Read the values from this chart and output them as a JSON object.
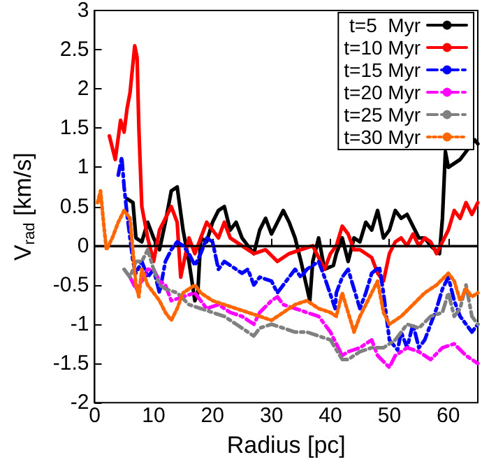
{
  "chart_data": {
    "type": "line",
    "xlabel": "Radius [pc]",
    "ylabel": "V$_{rad}$ [km/s]",
    "xlim": [
      0,
      65
    ],
    "xticks": [
      0,
      10,
      20,
      30,
      40,
      50,
      60
    ],
    "ylim": [
      -2,
      3
    ],
    "yticks": [
      -2,
      -1.5,
      -1,
      -0.5,
      0,
      0.5,
      1,
      1.5,
      2,
      2.5,
      3
    ],
    "grid": false,
    "legend": "top right",
    "marker": "none",
    "ref_lines": [
      {
        "axis": "y",
        "value": 0,
        "color": "#000000"
      }
    ],
    "series": [
      {
        "name": "t=5  Myr",
        "color": "#000000",
        "line_style": "solid",
        "x": [
          5.5,
          6.5,
          7,
          8,
          9,
          10,
          11,
          12,
          13,
          14,
          15,
          16,
          17,
          17.5,
          18,
          19,
          20,
          21,
          22,
          23,
          24,
          25,
          26,
          27,
          28,
          29,
          30,
          31,
          32,
          33,
          34,
          35,
          36.5,
          37,
          38,
          39,
          40.5,
          41,
          42,
          43,
          44,
          45,
          46,
          47,
          48,
          49,
          50,
          51,
          52,
          53,
          54,
          55,
          56,
          57,
          58.5,
          59,
          59.5,
          60,
          62,
          64.5,
          65
        ],
        "values": [
          0.6,
          0.55,
          0.1,
          0.05,
          0.3,
          0.1,
          -0.05,
          0.3,
          0.7,
          0.75,
          0.2,
          -0.2,
          -0.7,
          -0.6,
          0.1,
          0.05,
          0.3,
          0.45,
          0.5,
          0.2,
          0.3,
          0.1,
          0,
          -0.1,
          0.2,
          0.35,
          0.15,
          0.3,
          0.45,
          0.3,
          0.1,
          -0.2,
          -0.7,
          -0.2,
          0.1,
          -0.3,
          -0.25,
          -0.1,
          0.1,
          -0.2,
          0.1,
          0.05,
          0.3,
          0.2,
          0.45,
          0.1,
          0.2,
          0.45,
          0.35,
          0.4,
          0.25,
          0.1,
          0.1,
          0,
          -0.1,
          0.35,
          1.2,
          1,
          1.1,
          1.35,
          1.3
        ]
      },
      {
        "name": "t=10 Myr",
        "color": "#ff0000",
        "line_style": "solid",
        "x": [
          2.5,
          3.5,
          4.4,
          5,
          5.5,
          6,
          6.8,
          7.2,
          7.5,
          8,
          9,
          10,
          11,
          12,
          13,
          14,
          14.6,
          16,
          17,
          18,
          19,
          20,
          21,
          22,
          23,
          25,
          27,
          29,
          31,
          33,
          35,
          37,
          39,
          40,
          41,
          42,
          43,
          44,
          45,
          46,
          47,
          48,
          49,
          50,
          51,
          52,
          53,
          54,
          55,
          56,
          57,
          58,
          59,
          60,
          61,
          62,
          63,
          64,
          65
        ],
        "values": [
          1.4,
          1.1,
          1.6,
          1.45,
          1.75,
          1.95,
          2.55,
          2.4,
          1.5,
          0.5,
          0.1,
          -0.2,
          0.2,
          0.35,
          0.5,
          0.3,
          -0.4,
          0.1,
          -0.1,
          0.1,
          0.3,
          0.2,
          0.1,
          0.3,
          0.1,
          0,
          -0.1,
          -0.05,
          -0.2,
          -0.1,
          -0.05,
          0,
          -0.3,
          -0.1,
          0,
          0.25,
          0.15,
          -0.05,
          -0.05,
          -0.1,
          -0.15,
          -0.35,
          -0.45,
          -0.1,
          0.05,
          0.1,
          0,
          0.15,
          0,
          0.1,
          0.05,
          -0.1,
          0.05,
          0.2,
          0.45,
          0.35,
          0.55,
          0.4,
          0.55
        ]
      },
      {
        "name": "t=15 Myr",
        "color": "#0000ff",
        "line_style": "dashed",
        "x": [
          4,
          4.6,
          5,
          5.5,
          6,
          6.5,
          7,
          8,
          9,
          10,
          11,
          12,
          13,
          14,
          15,
          16,
          17,
          18,
          19,
          20,
          21,
          22,
          23,
          25,
          26,
          27,
          28,
          30,
          31,
          32,
          33,
          34,
          35,
          36,
          37,
          38,
          39,
          40.8,
          41,
          42,
          43,
          44,
          45,
          46,
          47,
          48.3,
          49,
          50,
          51.4,
          52,
          53,
          54,
          55,
          56,
          57,
          58,
          59,
          60,
          61,
          62,
          63,
          64,
          65
        ],
        "values": [
          0.9,
          1.13,
          0.75,
          0.4,
          0.1,
          -0.2,
          -0.35,
          -0.2,
          -0.4,
          -0.3,
          -0.6,
          -0.2,
          -0.05,
          0.05,
          0,
          -0.1,
          -0.25,
          -0.1,
          0.1,
          0.05,
          -0.3,
          -0.2,
          -0.25,
          -0.35,
          -0.3,
          -0.5,
          -0.4,
          -0.45,
          -0.6,
          -0.5,
          -0.4,
          -0.3,
          -0.4,
          -0.3,
          -0.25,
          -0.2,
          -0.4,
          -0.8,
          -0.6,
          -0.4,
          -0.3,
          -0.55,
          -0.8,
          -0.6,
          -0.35,
          -0.27,
          -0.6,
          -1.2,
          -1.33,
          -1.1,
          -1.3,
          -1,
          -1.3,
          -1.2,
          -1,
          -0.8,
          -0.55,
          -0.4,
          -0.7,
          -0.9,
          -1,
          -1.1,
          -1
        ]
      },
      {
        "name": "t=20 Myr",
        "color": "#ff00ff",
        "line_style": "dashed",
        "x": [
          6,
          7,
          8,
          9,
          10,
          11,
          12,
          13,
          15,
          17,
          19,
          21,
          23,
          25,
          26,
          27,
          28,
          30,
          31,
          32,
          34,
          36,
          38,
          40,
          42,
          43,
          45,
          47,
          48,
          50,
          51,
          53,
          55,
          57,
          59,
          61,
          63,
          65
        ],
        "values": [
          -0.4,
          -0.55,
          -0.45,
          -0.3,
          -0.3,
          -0.45,
          -0.5,
          -0.7,
          -0.65,
          -0.6,
          -0.8,
          -0.75,
          -0.85,
          -0.9,
          -0.95,
          -1,
          -0.85,
          -0.7,
          -0.65,
          -0.75,
          -0.8,
          -0.85,
          -0.9,
          -1.1,
          -1.4,
          -1.35,
          -1.3,
          -1.2,
          -1.4,
          -1.55,
          -1.4,
          -1.3,
          -1.35,
          -1.45,
          -1.3,
          -1.25,
          -1.4,
          -1.5
        ]
      },
      {
        "name": "t=25 Myr",
        "color": "#808080",
        "line_style": "dashed",
        "x": [
          5,
          6,
          7,
          8,
          9,
          10,
          11,
          12,
          14,
          16,
          18,
          20,
          22,
          24,
          26,
          27,
          28,
          30,
          32,
          34,
          36,
          38,
          40,
          42,
          43,
          45,
          47,
          49,
          51,
          53,
          55,
          57,
          59,
          60,
          61,
          62,
          63,
          64,
          65
        ],
        "values": [
          -0.3,
          -0.4,
          -0.2,
          -0.2,
          -0.05,
          -0.3,
          -0.5,
          -0.55,
          -0.6,
          -0.75,
          -0.8,
          -0.85,
          -0.9,
          -1,
          -1.1,
          -1.15,
          -1.05,
          -1,
          -1.05,
          -1.1,
          -1.1,
          -1.15,
          -1.2,
          -1.45,
          -1.45,
          -1.35,
          -1.3,
          -1.3,
          -1.2,
          -1,
          -1.05,
          -0.9,
          -0.85,
          -0.6,
          -0.9,
          -0.8,
          -0.5,
          -0.9,
          -1
        ]
      },
      {
        "name": "t=30 Myr",
        "color": "#ff6600",
        "line_style": "dotted",
        "x": [
          0.5,
          1,
          1.5,
          2,
          3,
          4,
          5,
          6,
          7,
          7.5,
          8,
          9,
          10,
          11,
          12,
          13,
          14,
          15,
          16,
          17,
          18,
          19,
          20,
          22,
          24,
          26,
          28,
          30,
          32,
          34,
          36,
          38,
          40,
          41,
          42,
          43,
          44,
          45,
          46,
          47,
          48,
          49,
          50,
          52,
          54,
          56,
          58,
          60,
          61,
          62,
          63,
          64,
          65
        ],
        "values": [
          0.55,
          0.7,
          0.3,
          -0.05,
          0.1,
          0.3,
          0.45,
          0.35,
          -0.5,
          -0.65,
          -0.3,
          -0.5,
          -0.6,
          -0.7,
          -0.85,
          -0.95,
          -0.8,
          -0.6,
          -0.55,
          -0.5,
          -0.6,
          -0.65,
          -0.7,
          -0.75,
          -0.8,
          -0.85,
          -0.9,
          -0.95,
          -0.85,
          -0.75,
          -0.7,
          -0.8,
          -0.85,
          -0.9,
          -0.6,
          -0.85,
          -1.1,
          -0.9,
          -0.75,
          -0.6,
          -0.45,
          -0.85,
          -1,
          -0.9,
          -0.75,
          -0.6,
          -0.5,
          -0.35,
          -0.45,
          -0.7,
          -0.55,
          -0.65,
          -0.6
        ]
      }
    ]
  }
}
